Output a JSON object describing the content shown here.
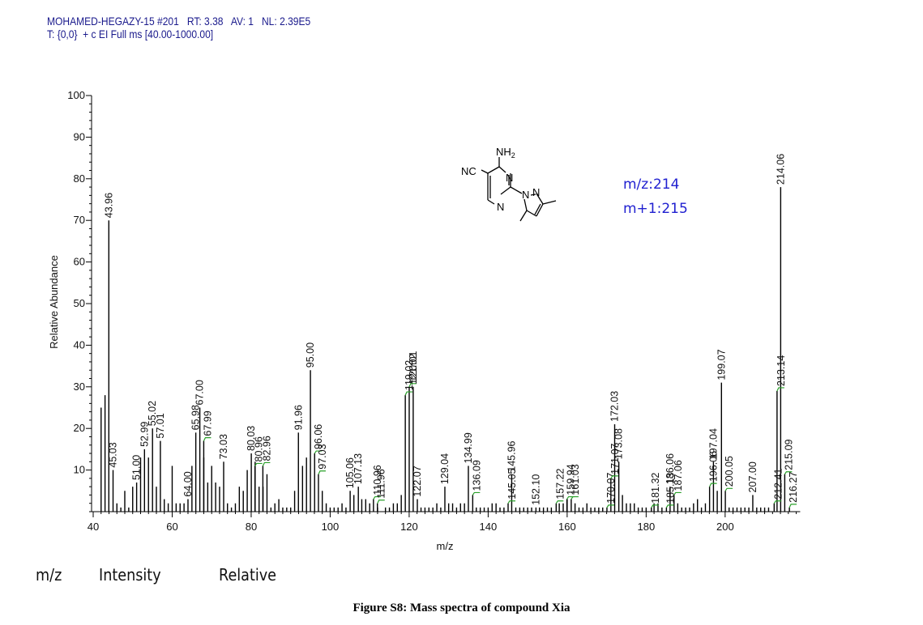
{
  "header": {
    "line1": "MOHAMED-HEGAZY-15 #201   RT: 3.38   AV: 1   NL: 2.39E5",
    "line2": "T: {0,0}  + c EI Full ms [40.00-1000.00]"
  },
  "annotation": {
    "mz": "m/z:214",
    "m_plus_1": "m+1:215"
  },
  "structure": {
    "labels": [
      "NH2",
      "NC",
      "N",
      "N",
      "N",
      "N"
    ]
  },
  "bottom_labels": [
    "m/z",
    "Intensity",
    "Relative"
  ],
  "caption": "Figure S8: Mass spectra of compound Xia",
  "colors": {
    "header": "#1a1a8c",
    "annotation": "#1f1fd0",
    "leader": "#2aa02a",
    "axis": "#000000"
  },
  "chart_data": {
    "type": "bar",
    "xlabel": "m/z",
    "ylabel": "Relative Abundance",
    "xlim": [
      40,
      219
    ],
    "ylim": [
      0,
      100
    ],
    "xticks": [
      40,
      60,
      80,
      100,
      120,
      140,
      160,
      180,
      200
    ],
    "yticks": [
      10,
      20,
      30,
      40,
      50,
      60,
      70,
      80,
      90,
      100
    ],
    "peaks": [
      [
        42,
        25
      ],
      [
        43,
        28
      ],
      [
        43.96,
        70
      ],
      [
        45.03,
        10
      ],
      [
        46,
        2
      ],
      [
        47,
        1
      ],
      [
        48,
        5
      ],
      [
        49,
        1
      ],
      [
        50,
        6
      ],
      [
        51,
        7
      ],
      [
        52,
        13
      ],
      [
        52.99,
        15
      ],
      [
        54,
        13
      ],
      [
        55.02,
        20
      ],
      [
        56,
        6
      ],
      [
        57.01,
        17
      ],
      [
        58,
        3
      ],
      [
        59,
        2
      ],
      [
        60,
        11
      ],
      [
        61,
        2
      ],
      [
        62,
        2
      ],
      [
        63,
        2
      ],
      [
        64,
        3
      ],
      [
        65,
        11
      ],
      [
        65.98,
        19
      ],
      [
        67,
        25
      ],
      [
        68,
        13
      ],
      [
        67.99,
        17
      ],
      [
        69,
        7
      ],
      [
        70,
        11
      ],
      [
        71,
        7
      ],
      [
        72,
        6
      ],
      [
        73.03,
        12
      ],
      [
        74,
        2
      ],
      [
        75,
        1
      ],
      [
        76,
        2
      ],
      [
        77,
        6
      ],
      [
        78,
        5
      ],
      [
        79,
        10
      ],
      [
        80.03,
        14
      ],
      [
        81,
        12
      ],
      [
        82,
        6
      ],
      [
        80.96,
        11
      ],
      [
        83,
        6
      ],
      [
        82.96,
        11
      ],
      [
        84,
        9
      ],
      [
        85,
        1
      ],
      [
        86,
        2
      ],
      [
        87,
        3
      ],
      [
        88,
        1
      ],
      [
        89,
        1
      ],
      [
        90,
        1
      ],
      [
        91,
        5
      ],
      [
        91.96,
        19
      ],
      [
        93,
        11
      ],
      [
        94,
        13
      ],
      [
        95,
        34
      ],
      [
        96.06,
        14
      ],
      [
        97.03,
        9
      ],
      [
        98,
        5
      ],
      [
        99,
        2
      ],
      [
        100,
        1
      ],
      [
        101,
        1
      ],
      [
        102,
        1
      ],
      [
        103,
        2
      ],
      [
        104,
        1
      ],
      [
        105.06,
        5
      ],
      [
        106,
        4
      ],
      [
        107.13,
        6
      ],
      [
        108,
        3
      ],
      [
        109,
        3
      ],
      [
        110.96,
        3
      ],
      [
        110,
        2
      ],
      [
        112,
        1
      ],
      [
        111.96,
        2
      ],
      [
        114,
        1
      ],
      [
        115,
        1
      ],
      [
        116,
        2
      ],
      [
        117,
        2
      ],
      [
        118,
        4
      ],
      [
        119.02,
        28
      ],
      [
        120.01,
        30
      ],
      [
        121.02,
        30
      ],
      [
        122.07,
        3
      ],
      [
        123,
        1
      ],
      [
        124,
        1
      ],
      [
        125,
        1
      ],
      [
        126,
        1
      ],
      [
        127,
        2
      ],
      [
        128,
        1
      ],
      [
        129.04,
        6
      ],
      [
        130,
        2
      ],
      [
        131,
        2
      ],
      [
        132,
        1
      ],
      [
        133,
        2
      ],
      [
        134,
        2
      ],
      [
        134.99,
        11
      ],
      [
        136.09,
        4
      ],
      [
        137,
        1
      ],
      [
        138,
        1
      ],
      [
        139,
        1
      ],
      [
        140,
        1
      ],
      [
        141,
        2
      ],
      [
        142,
        2
      ],
      [
        143,
        1
      ],
      [
        144,
        1
      ],
      [
        145.05,
        2
      ],
      [
        145.96,
        9
      ],
      [
        147,
        1
      ],
      [
        148,
        1
      ],
      [
        149,
        1
      ],
      [
        150,
        1
      ],
      [
        151,
        1
      ],
      [
        152.1,
        1
      ],
      [
        153,
        1
      ],
      [
        154,
        1
      ],
      [
        155,
        1
      ],
      [
        156,
        1
      ],
      [
        157.22,
        2
      ],
      [
        158,
        2
      ],
      [
        159,
        2
      ],
      [
        159.94,
        3
      ],
      [
        160,
        3
      ],
      [
        161.03,
        3
      ],
      [
        162,
        2
      ],
      [
        163,
        1
      ],
      [
        164,
        1
      ],
      [
        165,
        2
      ],
      [
        166,
        1
      ],
      [
        167,
        1
      ],
      [
        168,
        1
      ],
      [
        169,
        1
      ],
      [
        170.07,
        1
      ],
      [
        171.07,
        8
      ],
      [
        172.03,
        21
      ],
      [
        173.08,
        12
      ],
      [
        174,
        4
      ],
      [
        175,
        2
      ],
      [
        176,
        2
      ],
      [
        177,
        2
      ],
      [
        178,
        1
      ],
      [
        179,
        1
      ],
      [
        180,
        1
      ],
      [
        181.32,
        1
      ],
      [
        182,
        2
      ],
      [
        183,
        2
      ],
      [
        184,
        1
      ],
      [
        185.13,
        1
      ],
      [
        186.06,
        6
      ],
      [
        187.06,
        4
      ],
      [
        188,
        2
      ],
      [
        189,
        1
      ],
      [
        190,
        1
      ],
      [
        191,
        1
      ],
      [
        192,
        2
      ],
      [
        193,
        3
      ],
      [
        194,
        1
      ],
      [
        195,
        2
      ],
      [
        196.06,
        6
      ],
      [
        197.04,
        12
      ],
      [
        198,
        5
      ],
      [
        199.07,
        31
      ],
      [
        200.05,
        5
      ],
      [
        201,
        1
      ],
      [
        202,
        1
      ],
      [
        203,
        1
      ],
      [
        204,
        1
      ],
      [
        205,
        1
      ],
      [
        206,
        1
      ],
      [
        207.0,
        4
      ],
      [
        208,
        1
      ],
      [
        209,
        1
      ],
      [
        210,
        1
      ],
      [
        211,
        1
      ],
      [
        212.41,
        2
      ],
      [
        213.14,
        29
      ],
      [
        214.06,
        78
      ],
      [
        215.09,
        9
      ],
      [
        216.27,
        1
      ]
    ],
    "labels": [
      [
        43.96,
        "43.96",
        0,
        0
      ],
      [
        45.03,
        "45.03",
        0,
        0
      ],
      [
        51.0,
        "51.00",
        0,
        0
      ],
      [
        52.99,
        "52.99",
        0,
        0
      ],
      [
        55.02,
        "55.02",
        0,
        0
      ],
      [
        57.01,
        "57.01",
        0,
        0
      ],
      [
        64.0,
        "64.00",
        0,
        0
      ],
      [
        65.98,
        "65.98",
        0,
        0
      ],
      [
        67.0,
        "67.00",
        0,
        0
      ],
      [
        67.99,
        "67.99",
        1,
        4
      ],
      [
        73.03,
        "73.03",
        0,
        0
      ],
      [
        80.03,
        "80.03",
        0,
        0
      ],
      [
        80.96,
        "80.96",
        1,
        3
      ],
      [
        82.96,
        "82.96",
        1,
        4
      ],
      [
        91.96,
        "91.96",
        0,
        0
      ],
      [
        95.0,
        "95.00",
        0,
        0
      ],
      [
        96.06,
        "96.06",
        1,
        3
      ],
      [
        97.03,
        "97.03",
        1,
        4
      ],
      [
        105.06,
        "105.06",
        0,
        0
      ],
      [
        107.13,
        "107.13",
        0,
        0
      ],
      [
        110.96,
        "110.96",
        1,
        3
      ],
      [
        111.96,
        "111.96",
        1,
        4
      ],
      [
        119.02,
        "119.02",
        1,
        4
      ],
      [
        120.01,
        "120.01",
        1,
        4
      ],
      [
        121.02,
        "121.02",
        0,
        0
      ],
      [
        122.07,
        "122.07",
        0,
        0
      ],
      [
        129.04,
        "129.04",
        0,
        0
      ],
      [
        134.99,
        "134.99",
        0,
        0
      ],
      [
        136.09,
        "136.09",
        1,
        3
      ],
      [
        145.05,
        "145.05",
        1,
        3
      ],
      [
        145.96,
        "145.96",
        0,
        0
      ],
      [
        152.1,
        "152.10",
        0,
        0
      ],
      [
        157.22,
        "157.22",
        1,
        3
      ],
      [
        159.94,
        "159.94",
        1,
        3
      ],
      [
        161.03,
        "161.03",
        1,
        3
      ],
      [
        170.07,
        "170.07",
        1,
        3
      ],
      [
        171.07,
        "171.07",
        1,
        3
      ],
      [
        172.03,
        "172.03",
        0,
        0
      ],
      [
        173.08,
        "173.08",
        0,
        0
      ],
      [
        181.32,
        "181.32",
        1,
        3
      ],
      [
        185.13,
        "185.13",
        1,
        3
      ],
      [
        186.06,
        "186.06",
        0,
        0
      ],
      [
        187.06,
        "187.06",
        1,
        3
      ],
      [
        196.06,
        "196.06",
        1,
        4
      ],
      [
        197.04,
        "197.04",
        0,
        0
      ],
      [
        199.07,
        "199.07",
        0,
        0
      ],
      [
        200.05,
        "200.05",
        1,
        3
      ],
      [
        207.0,
        "207.00",
        0,
        0
      ],
      [
        212.41,
        "212.41",
        1,
        3
      ],
      [
        213.14,
        "213.14",
        1,
        4
      ],
      [
        214.06,
        "214.06",
        0,
        0
      ],
      [
        215.09,
        "215.09",
        1,
        3
      ],
      [
        216.27,
        "216.27",
        1,
        4
      ]
    ]
  }
}
